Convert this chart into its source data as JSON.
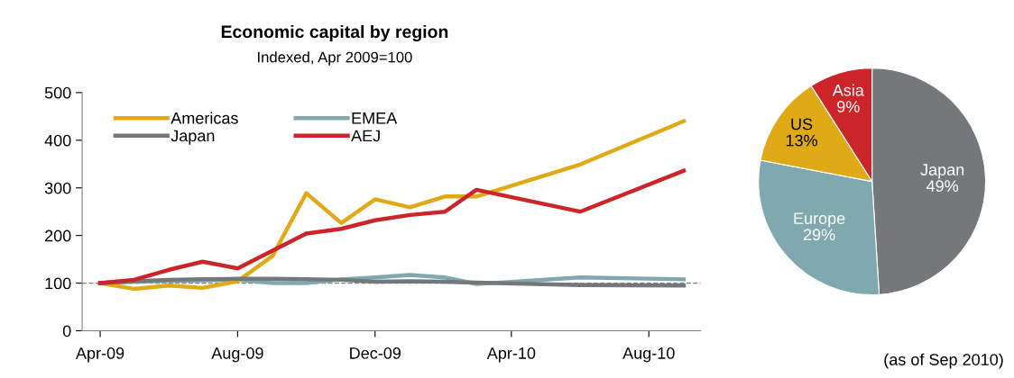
{
  "chart_data": [
    {
      "type": "line",
      "title": "Economic capital by region",
      "subtitle": "Indexed, Apr 2009=100",
      "x": [
        "2009-04",
        "2009-05",
        "2009-06",
        "2009-07",
        "2009-08",
        "2009-09",
        "2009-10",
        "2009-11",
        "2009-12",
        "2010-01",
        "2010-02",
        "2010-03",
        "2010-06",
        "2010-09"
      ],
      "series": [
        {
          "name": "Americas",
          "color": "#e0aa17",
          "values": [
            100,
            88,
            95,
            90,
            104,
            157,
            289,
            226,
            276,
            259,
            282,
            282,
            349,
            440
          ]
        },
        {
          "name": "EMEA",
          "color": "#7fa9ae",
          "values": [
            100,
            103,
            105,
            106,
            107,
            100,
            100,
            108,
            112,
            117,
            112,
            98,
            112,
            108
          ]
        },
        {
          "name": "Japan",
          "color": "#75787b",
          "values": [
            100,
            104,
            107,
            108,
            109,
            109,
            108,
            107,
            103,
            104,
            103,
            101,
            96,
            95
          ]
        },
        {
          "name": "AEJ",
          "color": "#cc2529",
          "values": [
            100,
            107,
            128,
            145,
            131,
            168,
            204,
            214,
            232,
            243,
            250,
            296,
            250,
            336
          ]
        }
      ],
      "xlim": [
        "2009-03-16",
        "2010-09-16"
      ],
      "xticks": [
        {
          "value": "2009-04-01",
          "label": "Apr-09"
        },
        {
          "value": "2009-08-01",
          "label": "Aug-09"
        },
        {
          "value": "2009-12-01",
          "label": "Dec-09"
        },
        {
          "value": "2010-04-01",
          "label": "Apr-10"
        },
        {
          "value": "2010-08-01",
          "label": "Aug-10"
        }
      ],
      "ylim": [
        0,
        500
      ],
      "yticks": [
        0,
        100,
        200,
        300,
        400,
        500
      ],
      "ref_lines": [
        {
          "axis": "y",
          "value": 100,
          "color": "#808080",
          "line_style": "dashed"
        }
      ],
      "grid": false,
      "legend": "top left",
      "marker": "none",
      "line_style": "solid"
    },
    {
      "type": "pie",
      "categories": [
        "Japan",
        "Europe",
        "US",
        "Asia"
      ],
      "values": [
        49,
        29,
        13,
        9
      ],
      "colors": [
        "#75787b",
        "#7fa9ae",
        "#e0aa17",
        "#cc2529"
      ],
      "value_labels": [
        "49%",
        "29%",
        "13%",
        "9%"
      ],
      "annotations": [
        "(as of Sep 2010)"
      ]
    }
  ]
}
